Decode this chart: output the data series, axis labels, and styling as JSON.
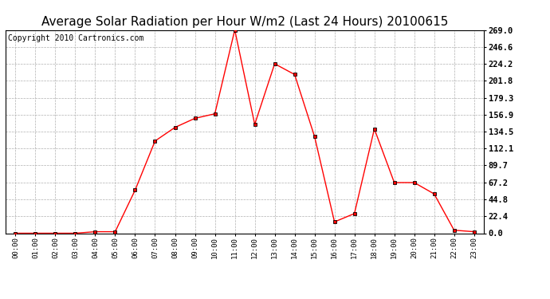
{
  "title": "Average Solar Radiation per Hour W/m2 (Last 24 Hours) 20100615",
  "copyright": "Copyright 2010 Cartronics.com",
  "hours": [
    "00:00",
    "01:00",
    "02:00",
    "03:00",
    "04:00",
    "05:00",
    "06:00",
    "07:00",
    "08:00",
    "09:00",
    "10:00",
    "11:00",
    "12:00",
    "13:00",
    "14:00",
    "15:00",
    "16:00",
    "17:00",
    "18:00",
    "19:00",
    "20:00",
    "21:00",
    "22:00",
    "23:00"
  ],
  "values": [
    0.0,
    0.0,
    0.0,
    0.0,
    2.0,
    2.0,
    57.0,
    122.0,
    140.0,
    152.0,
    158.0,
    269.0,
    144.0,
    224.2,
    210.0,
    128.0,
    15.0,
    26.0,
    138.0,
    67.0,
    67.0,
    52.0,
    4.0,
    2.0
  ],
  "line_color": "#ff0000",
  "marker": "s",
  "marker_size": 2.5,
  "marker_color": "#000000",
  "background_color": "#ffffff",
  "grid_color": "#b0b0b0",
  "yticks": [
    0.0,
    22.4,
    44.8,
    67.2,
    89.7,
    112.1,
    134.5,
    156.9,
    179.3,
    201.8,
    224.2,
    246.6,
    269.0
  ],
  "ylim": [
    0,
    269.0
  ],
  "title_fontsize": 11,
  "copyright_fontsize": 7,
  "fig_width": 6.9,
  "fig_height": 3.75,
  "dpi": 100
}
